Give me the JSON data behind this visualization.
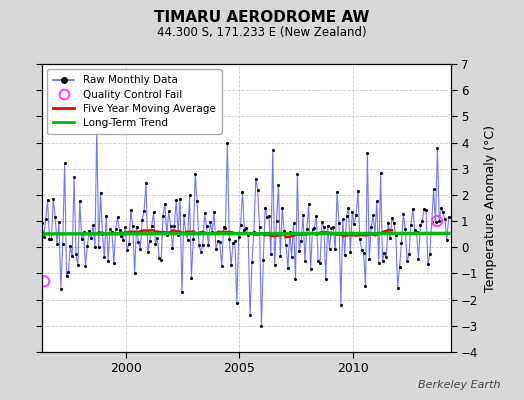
{
  "title": "TIMARU AERODROME AW",
  "subtitle": "44.300 S, 171.233 E (New Zealand)",
  "ylabel": "Temperature Anomaly (°C)",
  "attribution": "Berkeley Earth",
  "ylim": [
    -4,
    7
  ],
  "yticks": [
    -4,
    -3,
    -2,
    -1,
    0,
    1,
    2,
    3,
    4,
    5,
    6,
    7
  ],
  "xlim": [
    1996.3,
    2014.3
  ],
  "xticks": [
    2000,
    2005,
    2010
  ],
  "background_color": "#d8d8d8",
  "plot_bg_color": "#ffffff",
  "raw_line_color": "#6666ff",
  "raw_marker_color": "#000000",
  "moving_avg_color": "#ff0000",
  "trend_color": "#00bb00",
  "qc_fail_color": "#ff44ff",
  "trend_value": 0.52,
  "trend_slope": 0.001,
  "seed": 42
}
